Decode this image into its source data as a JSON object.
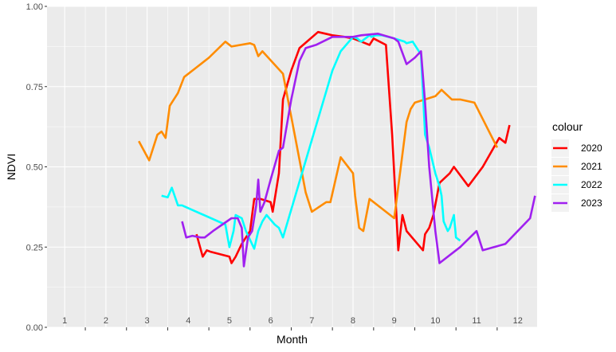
{
  "chart_data": {
    "type": "line",
    "xlabel": "Month",
    "ylabel": "NDVI",
    "xlim": [
      0.57,
      12.47
    ],
    "ylim": [
      0,
      1
    ],
    "x_ticks": [
      {
        "value": 1,
        "label": "1"
      },
      {
        "value": 2,
        "label": "2"
      },
      {
        "value": 3,
        "label": "3"
      },
      {
        "value": 4,
        "label": "4"
      },
      {
        "value": 5,
        "label": "5"
      },
      {
        "value": 6,
        "label": "6"
      },
      {
        "value": 7,
        "label": "7"
      },
      {
        "value": 8,
        "label": "8"
      },
      {
        "value": 9,
        "label": "9"
      },
      {
        "value": 10,
        "label": "10"
      },
      {
        "value": 11,
        "label": "11"
      },
      {
        "value": 12,
        "label": "12"
      }
    ],
    "y_ticks": [
      {
        "value": 0,
        "label": "0.00"
      },
      {
        "value": 0.25,
        "label": "0.25"
      },
      {
        "value": 0.5,
        "label": "0.50"
      },
      {
        "value": 0.75,
        "label": "0.75"
      },
      {
        "value": 1,
        "label": "1.00"
      }
    ],
    "grid": true,
    "legend": {
      "title": "colour",
      "position": "right"
    },
    "series": [
      {
        "name": "2020",
        "color": "#ff0000",
        "x": [
          4.2,
          4.35,
          4.45,
          4.55,
          5.0,
          5.05,
          5.15,
          5.3,
          5.5,
          5.6,
          5.75,
          6.0,
          6.05,
          6.2,
          6.3,
          6.5,
          6.7,
          7.15,
          7.5,
          7.8,
          8.0,
          8.3,
          8.4,
          8.5,
          8.8,
          8.95,
          9.1,
          9.2,
          9.3,
          9.7,
          9.75,
          9.85,
          9.95,
          10.1,
          10.35,
          10.45,
          10.8,
          11.15,
          11.55,
          11.7,
          11.8
        ],
        "y": [
          0.29,
          0.22,
          0.24,
          0.235,
          0.22,
          0.2,
          0.22,
          0.26,
          0.3,
          0.4,
          0.4,
          0.39,
          0.36,
          0.48,
          0.71,
          0.8,
          0.87,
          0.92,
          0.91,
          0.905,
          0.9,
          0.885,
          0.88,
          0.9,
          0.88,
          0.6,
          0.24,
          0.35,
          0.3,
          0.24,
          0.29,
          0.31,
          0.35,
          0.45,
          0.48,
          0.5,
          0.44,
          0.5,
          0.59,
          0.575,
          0.63
        ]
      },
      {
        "name": "2021",
        "color": "#ff8c00",
        "x": [
          2.8,
          3.05,
          3.25,
          3.35,
          3.45,
          3.55,
          3.75,
          3.9,
          4.2,
          4.5,
          4.9,
          5.05,
          5.5,
          5.6,
          5.7,
          5.8,
          6.3,
          6.6,
          6.85,
          7.0,
          7.35,
          7.45,
          7.7,
          8.0,
          8.05,
          8.15,
          8.25,
          8.4,
          9.0,
          9.3,
          9.4,
          9.5,
          10.0,
          10.15,
          10.4,
          10.6,
          10.95,
          11.5
        ],
        "y": [
          0.58,
          0.52,
          0.6,
          0.61,
          0.59,
          0.69,
          0.73,
          0.78,
          0.81,
          0.84,
          0.89,
          0.875,
          0.885,
          0.88,
          0.845,
          0.86,
          0.79,
          0.59,
          0.42,
          0.36,
          0.39,
          0.39,
          0.53,
          0.48,
          0.41,
          0.31,
          0.3,
          0.4,
          0.34,
          0.64,
          0.68,
          0.7,
          0.72,
          0.74,
          0.71,
          0.71,
          0.7,
          0.56
        ]
      },
      {
        "name": "2022",
        "color": "#00ffff",
        "x": [
          3.35,
          3.5,
          3.6,
          3.75,
          3.85,
          4.9,
          5.0,
          5.1,
          5.15,
          5.3,
          5.35,
          5.4,
          5.6,
          5.7,
          5.8,
          5.9,
          6.1,
          6.2,
          6.3,
          7.5,
          7.7,
          8.0,
          8.1,
          8.2,
          8.4,
          8.45,
          8.55,
          8.7,
          9.0,
          9.25,
          9.3,
          9.45,
          9.5,
          9.55,
          9.65,
          9.75,
          9.85,
          10.0,
          10.1,
          10.15,
          10.2,
          10.3,
          10.35,
          10.45,
          10.5,
          10.6
        ],
        "y": [
          0.41,
          0.405,
          0.435,
          0.38,
          0.38,
          0.32,
          0.25,
          0.3,
          0.35,
          0.34,
          0.32,
          0.3,
          0.245,
          0.3,
          0.33,
          0.35,
          0.32,
          0.31,
          0.28,
          0.8,
          0.86,
          0.905,
          0.9,
          0.89,
          0.91,
          0.905,
          0.91,
          0.91,
          0.9,
          0.89,
          0.885,
          0.89,
          0.88,
          0.87,
          0.85,
          0.6,
          0.56,
          0.48,
          0.44,
          0.41,
          0.33,
          0.3,
          0.31,
          0.35,
          0.28,
          0.27
        ]
      },
      {
        "name": "2023",
        "color": "#a020f0",
        "x": [
          3.85,
          3.95,
          4.1,
          4.3,
          4.4,
          4.6,
          5.05,
          5.2,
          5.3,
          5.35,
          5.45,
          5.55,
          5.65,
          5.7,
          5.75,
          5.85,
          6.0,
          6.2,
          6.3,
          6.5,
          6.7,
          6.85,
          7.1,
          7.5,
          7.8,
          8.0,
          8.2,
          8.6,
          9.0,
          9.1,
          9.3,
          9.5,
          9.65,
          9.75,
          9.85,
          10.0,
          10.1,
          10.5,
          10.6,
          11.0,
          11.15,
          11.7,
          12.3,
          12.42
        ],
        "y": [
          0.33,
          0.28,
          0.285,
          0.28,
          0.28,
          0.3,
          0.34,
          0.34,
          0.31,
          0.19,
          0.28,
          0.3,
          0.38,
          0.46,
          0.36,
          0.39,
          0.46,
          0.55,
          0.56,
          0.71,
          0.83,
          0.87,
          0.88,
          0.905,
          0.905,
          0.905,
          0.91,
          0.915,
          0.9,
          0.89,
          0.82,
          0.84,
          0.86,
          0.7,
          0.5,
          0.3,
          0.2,
          0.24,
          0.25,
          0.3,
          0.24,
          0.26,
          0.34,
          0.41
        ]
      }
    ]
  }
}
